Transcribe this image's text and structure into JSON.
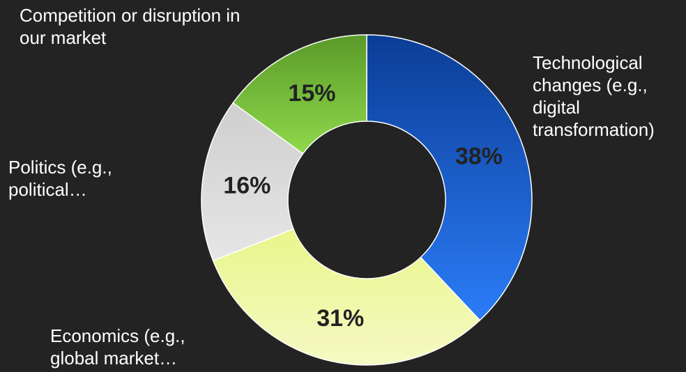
{
  "chart_data": {
    "type": "pie",
    "donut": true,
    "categories": [
      "Technological\nchanges (e.g.,\ndigital\ntransformation)",
      "Economics (e.g.,\nglobal market…",
      "Politics (e.g.,\npolitical…",
      "Competition or disruption in\nour market"
    ],
    "values": [
      38,
      31,
      16,
      15
    ],
    "value_labels": [
      "38%",
      "31%",
      "16%",
      "15%"
    ],
    "colors": [
      "#2a78f0",
      "#eef7a4",
      "#d9d9d9",
      "#76c442"
    ],
    "title": "",
    "legend": "none"
  }
}
